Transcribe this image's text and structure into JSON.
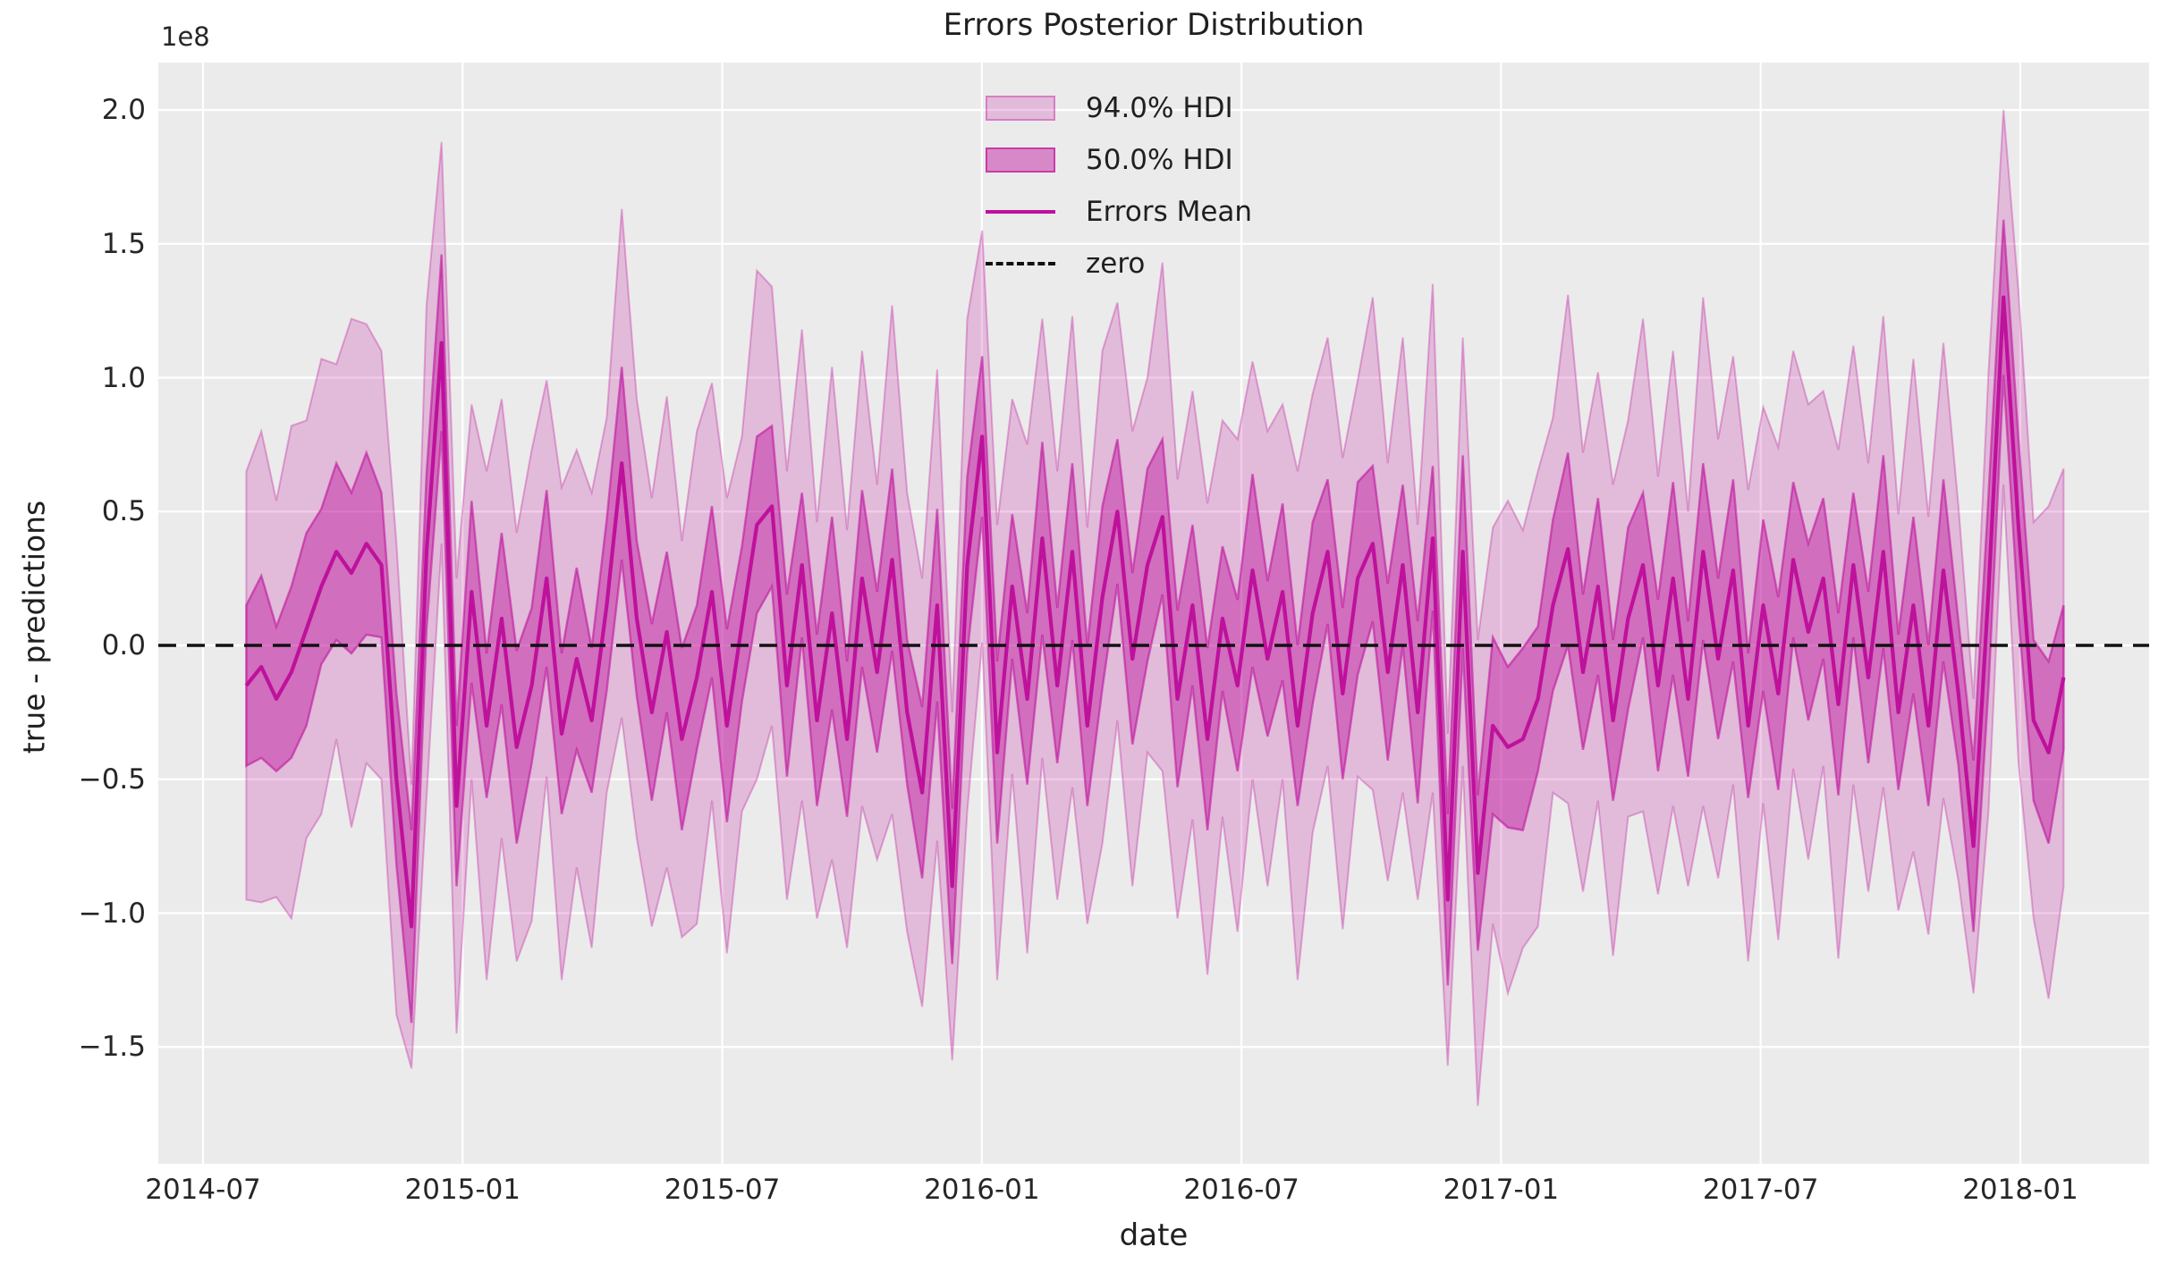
{
  "title": "Errors Posterior Distribution",
  "axes": {
    "xlabel": "date",
    "ylabel": "true - predictions",
    "y_offset_label": "1e8"
  },
  "legend": {
    "items": [
      {
        "swatch": "patch-light",
        "label": "94.0% HDI"
      },
      {
        "swatch": "patch-dark",
        "label": "50.0% HDI"
      },
      {
        "swatch": "line-solid",
        "label": "Errors Mean"
      },
      {
        "swatch": "line-dashed",
        "label": "zero"
      }
    ]
  },
  "colors": {
    "magenta": "#be119c",
    "band94_opacity": 0.22,
    "band50_opacity": 0.45,
    "band94_edge_opacity": 0.32,
    "band50_edge_opacity": 0.58,
    "zero_line": "#111111",
    "plot_background": "#ebebeb",
    "gridline": "#ffffff",
    "text": "#262626"
  },
  "chart_data": {
    "type": "line",
    "subtype": "mean-line-with-hdi-bands",
    "title": "Errors Posterior Distribution",
    "xlabel": "date",
    "ylabel": "true - predictions",
    "y_scale_label": "1e8",
    "grid": true,
    "legend_position": "upper center",
    "x_origin": "2014-07",
    "x_start_month": 1.0,
    "x_step_months": 0.34711,
    "n_points": 122,
    "ylim": [
      -1.94,
      2.18
    ],
    "x_ticks": [
      {
        "m": 0,
        "label": "2014-07"
      },
      {
        "m": 6,
        "label": "2015-01"
      },
      {
        "m": 12,
        "label": "2015-07"
      },
      {
        "m": 18,
        "label": "2016-01"
      },
      {
        "m": 24,
        "label": "2016-07"
      },
      {
        "m": 30,
        "label": "2017-01"
      },
      {
        "m": 36,
        "label": "2017-07"
      },
      {
        "m": 42,
        "label": "2018-01"
      }
    ],
    "y_ticks": [
      {
        "v": 2.0,
        "label": "2.0"
      },
      {
        "v": 1.5,
        "label": "1.5"
      },
      {
        "v": 1.0,
        "label": "1.0"
      },
      {
        "v": 0.5,
        "label": "0.5"
      },
      {
        "v": 0.0,
        "label": "0.0"
      },
      {
        "v": -0.5,
        "label": "−0.5"
      },
      {
        "v": -1.0,
        "label": "−1.0"
      },
      {
        "v": -1.5,
        "label": "−1.5"
      }
    ],
    "zero_line": 0.0,
    "series": [
      {
        "name": "Errors Mean",
        "units": "1e8",
        "values": [
          -0.15,
          -0.08,
          -0.2,
          -0.1,
          0.06,
          0.22,
          0.35,
          0.27,
          0.38,
          0.3,
          -0.5,
          -1.05,
          0.35,
          1.13,
          -0.6,
          0.2,
          -0.3,
          0.1,
          -0.38,
          -0.15,
          0.25,
          -0.33,
          -0.05,
          -0.28,
          0.15,
          0.68,
          0.1,
          -0.25,
          0.05,
          -0.35,
          -0.12,
          0.2,
          -0.3,
          0.08,
          0.45,
          0.52,
          -0.15,
          0.3,
          -0.28,
          0.12,
          -0.35,
          0.25,
          -0.1,
          0.32,
          -0.25,
          -0.55,
          0.15,
          -0.9,
          0.3,
          0.78,
          -0.4,
          0.22,
          -0.2,
          0.4,
          -0.15,
          0.35,
          -0.3,
          0.18,
          0.5,
          -0.05,
          0.3,
          0.48,
          -0.2,
          0.15,
          -0.35,
          0.1,
          -0.15,
          0.28,
          -0.05,
          0.2,
          -0.3,
          0.12,
          0.35,
          -0.18,
          0.25,
          0.38,
          -0.1,
          0.3,
          -0.25,
          0.4,
          -0.95,
          0.35,
          -0.85,
          -0.3,
          -0.38,
          -0.35,
          -0.2,
          0.15,
          0.36,
          -0.1,
          0.22,
          -0.28,
          0.1,
          0.3,
          -0.15,
          0.25,
          -0.2,
          0.35,
          -0.05,
          0.28,
          -0.3,
          0.15,
          -0.18,
          0.32,
          0.05,
          0.25,
          -0.22,
          0.3,
          -0.12,
          0.35,
          -0.25,
          0.15,
          -0.3,
          0.28,
          -0.18,
          -0.75,
          0.2,
          1.3,
          0.44,
          -0.28,
          -0.4,
          -0.12
        ]
      },
      {
        "name": "50.0% HDI half-width",
        "units": "1e8",
        "values": [
          0.3,
          0.34,
          0.27,
          0.32,
          0.36,
          0.29,
          0.33,
          0.3,
          0.34,
          0.27,
          0.32,
          0.36,
          0.29,
          0.33,
          0.3,
          0.34,
          0.27,
          0.32,
          0.36,
          0.29,
          0.33,
          0.3,
          0.34,
          0.27,
          0.32,
          0.36,
          0.29,
          0.33,
          0.3,
          0.34,
          0.27,
          0.32,
          0.36,
          0.29,
          0.33,
          0.3,
          0.34,
          0.27,
          0.32,
          0.36,
          0.29,
          0.33,
          0.3,
          0.34,
          0.27,
          0.32,
          0.36,
          0.29,
          0.33,
          0.3,
          0.34,
          0.27,
          0.32,
          0.36,
          0.29,
          0.33,
          0.3,
          0.34,
          0.27,
          0.32,
          0.36,
          0.29,
          0.33,
          0.3,
          0.34,
          0.27,
          0.32,
          0.36,
          0.29,
          0.33,
          0.3,
          0.34,
          0.27,
          0.32,
          0.36,
          0.29,
          0.33,
          0.3,
          0.34,
          0.27,
          0.32,
          0.36,
          0.29,
          0.33,
          0.3,
          0.34,
          0.27,
          0.32,
          0.36,
          0.29,
          0.33,
          0.3,
          0.34,
          0.27,
          0.32,
          0.36,
          0.29,
          0.33,
          0.3,
          0.34,
          0.27,
          0.32,
          0.36,
          0.29,
          0.33,
          0.3,
          0.34,
          0.27,
          0.32,
          0.36,
          0.29,
          0.33,
          0.3,
          0.34,
          0.27,
          0.32,
          0.36,
          0.29,
          0.33,
          0.3,
          0.34,
          0.27
        ]
      },
      {
        "name": "94.0% HDI half-width",
        "units": "1e8",
        "values": [
          0.8,
          0.88,
          0.74,
          0.92,
          0.78,
          0.85,
          0.7,
          0.95,
          0.82,
          0.8,
          0.88,
          0.53,
          0.92,
          0.75,
          0.85,
          0.7,
          0.95,
          0.82,
          0.8,
          0.88,
          0.74,
          0.92,
          0.78,
          0.85,
          0.7,
          0.95,
          0.82,
          0.8,
          0.88,
          0.74,
          0.92,
          0.78,
          0.85,
          0.7,
          0.95,
          0.82,
          0.8,
          0.88,
          0.74,
          0.92,
          0.78,
          0.85,
          0.7,
          0.95,
          0.82,
          0.8,
          0.88,
          0.65,
          0.92,
          0.77,
          0.85,
          0.7,
          0.95,
          0.82,
          0.8,
          0.88,
          0.74,
          0.92,
          0.78,
          0.85,
          0.7,
          0.95,
          0.82,
          0.8,
          0.88,
          0.74,
          0.92,
          0.78,
          0.85,
          0.7,
          0.95,
          0.82,
          0.8,
          0.88,
          0.74,
          0.92,
          0.78,
          0.85,
          0.7,
          0.95,
          0.62,
          0.8,
          0.87,
          0.74,
          0.92,
          0.78,
          0.85,
          0.7,
          0.95,
          0.82,
          0.8,
          0.88,
          0.74,
          0.92,
          0.78,
          0.85,
          0.7,
          0.95,
          0.82,
          0.8,
          0.88,
          0.74,
          0.92,
          0.78,
          0.85,
          0.7,
          0.95,
          0.82,
          0.8,
          0.88,
          0.74,
          0.92,
          0.78,
          0.85,
          0.7,
          0.55,
          0.82,
          0.7,
          0.88,
          0.74,
          0.92,
          0.78
        ]
      }
    ]
  }
}
